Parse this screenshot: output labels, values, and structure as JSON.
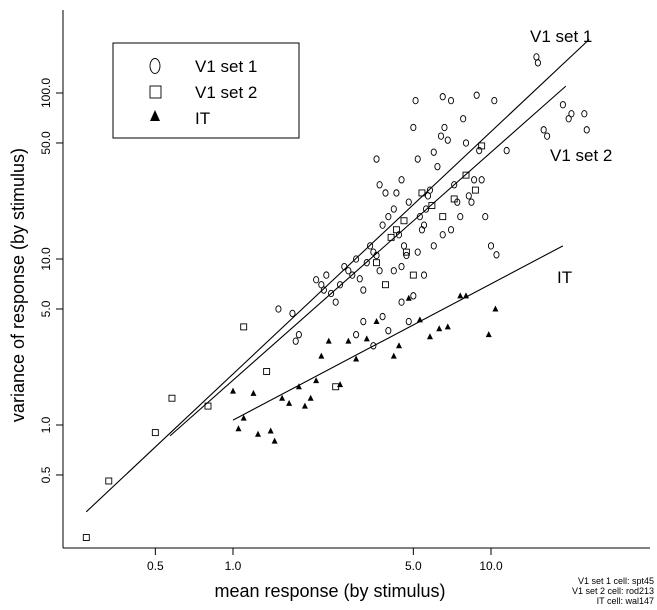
{
  "chart_data": {
    "type": "scatter",
    "xlabel": "mean response (by stimulus)",
    "ylabel": "variance of response (by stimulus)",
    "x_scale": "log",
    "y_scale": "log",
    "xlim": [
      0.25,
      25
    ],
    "ylim": [
      0.2,
      250
    ],
    "x_ticks": [
      0.5,
      1.0,
      5.0,
      10.0
    ],
    "x_tick_labels": [
      "0.5",
      "1.0",
      "5.0",
      "10.0"
    ],
    "y_ticks": [
      0.5,
      1.0,
      5.0,
      10.0,
      50.0,
      100.0
    ],
    "y_tick_labels": [
      "0.5",
      "1.0",
      "5.0",
      "10.0",
      "50.0",
      "100.0"
    ],
    "legend_placement": "top-left",
    "series": [
      {
        "name": "V1 set 1",
        "marker": "open-circle",
        "points": [
          [
            1.5,
            5.0
          ],
          [
            1.7,
            4.7
          ],
          [
            1.75,
            3.2
          ],
          [
            1.8,
            3.5
          ],
          [
            2.1,
            7.5
          ],
          [
            2.2,
            7.0
          ],
          [
            2.25,
            6.5
          ],
          [
            2.3,
            8.0
          ],
          [
            2.4,
            6.2
          ],
          [
            2.5,
            5.5
          ],
          [
            2.6,
            7.0
          ],
          [
            2.7,
            9.0
          ],
          [
            2.8,
            8.5
          ],
          [
            2.9,
            8.0
          ],
          [
            3.0,
            10.0
          ],
          [
            3.1,
            7.6
          ],
          [
            3.2,
            6.5
          ],
          [
            3.3,
            9.5
          ],
          [
            3.4,
            12.0
          ],
          [
            3.5,
            11.0
          ],
          [
            3.6,
            10.5
          ],
          [
            3.7,
            8.5
          ],
          [
            3.8,
            16.0
          ],
          [
            3.9,
            25.0
          ],
          [
            3.6,
            40.0
          ],
          [
            3.7,
            28.0
          ],
          [
            4.0,
            18.0
          ],
          [
            4.2,
            20.0
          ],
          [
            4.3,
            25.0
          ],
          [
            4.5,
            30.0
          ],
          [
            4.4,
            14.0
          ],
          [
            4.6,
            12.0
          ],
          [
            4.7,
            10.5
          ],
          [
            4.8,
            22.0
          ],
          [
            5.0,
            62.0
          ],
          [
            5.1,
            90.0
          ],
          [
            5.2,
            40.0
          ],
          [
            5.3,
            18.0
          ],
          [
            5.4,
            15.0
          ],
          [
            5.5,
            16.0
          ],
          [
            5.6,
            20.0
          ],
          [
            5.7,
            24.0
          ],
          [
            5.8,
            26.0
          ],
          [
            6.0,
            44.0
          ],
          [
            6.2,
            36.0
          ],
          [
            6.4,
            55.0
          ],
          [
            6.5,
            95.0
          ],
          [
            6.6,
            62.0
          ],
          [
            6.8,
            52.0
          ],
          [
            7.0,
            90.0
          ],
          [
            7.2,
            28.0
          ],
          [
            7.4,
            22.0
          ],
          [
            7.6,
            18.0
          ],
          [
            7.8,
            70.0
          ],
          [
            8.0,
            50.0
          ],
          [
            8.2,
            24.0
          ],
          [
            8.4,
            22.0
          ],
          [
            8.6,
            30.0
          ],
          [
            8.8,
            97.0
          ],
          [
            9.0,
            45.0
          ],
          [
            9.2,
            30.0
          ],
          [
            9.5,
            18.0
          ],
          [
            10.0,
            12.0
          ],
          [
            10.5,
            10.6
          ],
          [
            10.3,
            90.0
          ],
          [
            11.5,
            45.0
          ],
          [
            15.0,
            165.0
          ],
          [
            15.2,
            152.0
          ],
          [
            16.0,
            60.0
          ],
          [
            16.5,
            55.0
          ],
          [
            19.0,
            85.0
          ],
          [
            20.0,
            70.0
          ],
          [
            20.5,
            75.0
          ],
          [
            23.0,
            75.0
          ],
          [
            23.5,
            60.0
          ],
          [
            3.0,
            3.5
          ],
          [
            3.2,
            4.2
          ],
          [
            3.5,
            3.0
          ],
          [
            3.8,
            4.5
          ],
          [
            4.0,
            3.7
          ],
          [
            4.5,
            5.5
          ],
          [
            4.8,
            4.2
          ],
          [
            5.0,
            6.0
          ],
          [
            5.5,
            8.0
          ],
          [
            6.0,
            12.0
          ],
          [
            6.5,
            14.0
          ],
          [
            7.0,
            15.0
          ],
          [
            4.2,
            8.5
          ],
          [
            4.5,
            9.0
          ],
          [
            5.2,
            11.0
          ]
        ]
      },
      {
        "name": "V1 set 2",
        "marker": "open-square",
        "points": [
          [
            0.27,
            0.21
          ],
          [
            0.33,
            0.46
          ],
          [
            0.5,
            0.9
          ],
          [
            0.58,
            1.45
          ],
          [
            0.8,
            1.3
          ],
          [
            1.1,
            3.9
          ],
          [
            1.35,
            2.1
          ],
          [
            2.5,
            1.7
          ],
          [
            3.6,
            9.5
          ],
          [
            4.1,
            13.5
          ],
          [
            4.3,
            15.0
          ],
          [
            4.6,
            17.0
          ],
          [
            5.0,
            8.0
          ],
          [
            5.4,
            25.0
          ],
          [
            5.9,
            21.0
          ],
          [
            6.5,
            18.0
          ],
          [
            7.2,
            23.0
          ],
          [
            8.0,
            32.0
          ],
          [
            8.7,
            26.0
          ],
          [
            9.2,
            48.0
          ],
          [
            3.9,
            7.0
          ],
          [
            4.7,
            11.0
          ]
        ]
      },
      {
        "name": "IT",
        "marker": "filled-triangle",
        "points": [
          [
            1.0,
            1.6
          ],
          [
            1.05,
            0.95
          ],
          [
            1.1,
            1.1
          ],
          [
            1.2,
            1.55
          ],
          [
            1.25,
            0.88
          ],
          [
            1.4,
            0.92
          ],
          [
            1.45,
            0.8
          ],
          [
            1.55,
            1.45
          ],
          [
            1.65,
            1.35
          ],
          [
            1.8,
            1.7
          ],
          [
            1.9,
            1.3
          ],
          [
            2.0,
            1.45
          ],
          [
            2.1,
            1.85
          ],
          [
            2.2,
            2.6
          ],
          [
            2.35,
            3.2
          ],
          [
            2.6,
            1.75
          ],
          [
            2.8,
            3.2
          ],
          [
            3.0,
            2.5
          ],
          [
            3.3,
            3.3
          ],
          [
            3.6,
            4.2
          ],
          [
            4.2,
            2.6
          ],
          [
            4.4,
            3.0
          ],
          [
            4.8,
            5.8
          ],
          [
            5.3,
            4.3
          ],
          [
            5.8,
            3.4
          ],
          [
            6.3,
            3.8
          ],
          [
            6.8,
            3.9
          ],
          [
            7.6,
            6.0
          ],
          [
            8.0,
            6.0
          ],
          [
            9.8,
            3.5
          ],
          [
            10.4,
            5.0
          ]
        ]
      }
    ],
    "fit_lines": [
      {
        "name": "V1 set 1",
        "x": [
          0.27,
          24.0
        ],
        "y": [
          0.3,
          210.0
        ]
      },
      {
        "name": "V1 set 2",
        "x": [
          0.57,
          19.5
        ],
        "y": [
          0.86,
          110.0
        ]
      },
      {
        "name": "IT",
        "x": [
          1.0,
          19.0
        ],
        "y": [
          1.07,
          12.0
        ]
      }
    ],
    "footnotes": [
      "V1 set 1 cell: spt45",
      "V1 set 2 cell: rod213",
      "IT cell: wal147"
    ]
  }
}
